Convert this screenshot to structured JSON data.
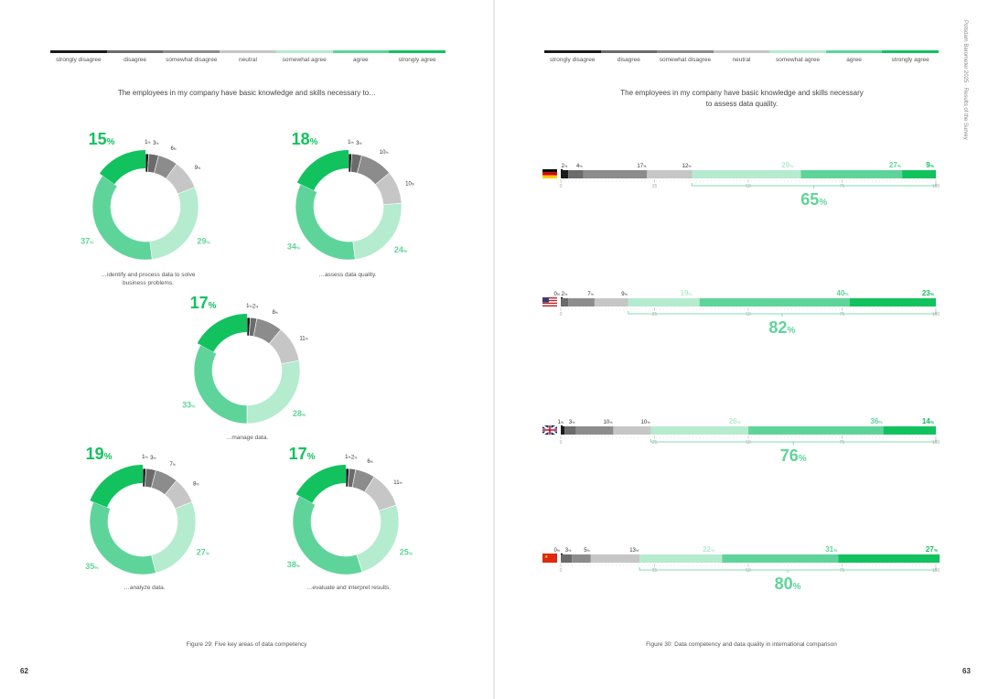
{
  "legend": [
    "strongly disagree",
    "disagree",
    "somewhat disagree",
    "neutral",
    "somewhat agree",
    "agree",
    "strongly agree"
  ],
  "colors": [
    "#1a1a1a",
    "#6b6b6b",
    "#8c8c8c",
    "#c6c6c6",
    "#b5ebcf",
    "#5fd49a",
    "#12c25e"
  ],
  "left_page": {
    "question": "The employees in my company have basic knowledge and skills necessary to…",
    "figure_caption": "Figure 29: Five key areas of data competency",
    "page_number": "62"
  },
  "right_page": {
    "question_line1": "The employees in my company have basic knowledge and skills necessary",
    "question_line2": "to assess data quality.",
    "figure_caption": "Figure 30: Data competency and data quality in international comparison",
    "page_number": "63",
    "side_text": "Potsdam Barometer 2025 · Results of the Survey"
  },
  "chart_data": [
    {
      "type": "pie",
      "title": "The employees in my company have basic knowledge and skills necessary to…",
      "categories": [
        "strongly disagree",
        "disagree",
        "somewhat disagree",
        "neutral",
        "somewhat agree",
        "agree",
        "strongly agree"
      ],
      "donuts": [
        {
          "caption_line1": "…identify and process data to solve",
          "caption_line2": "business problems.",
          "values": [
            1,
            3,
            6,
            9,
            29,
            37,
            15
          ]
        },
        {
          "caption_line1": "…assess data quality.",
          "caption_line2": "",
          "values": [
            1,
            3,
            10,
            10,
            24,
            34,
            18
          ]
        },
        {
          "caption_line1": "…manage data.",
          "caption_line2": "",
          "values": [
            1,
            2,
            8,
            11,
            28,
            33,
            17
          ]
        },
        {
          "caption_line1": "…analyze data.",
          "caption_line2": "",
          "values": [
            1,
            3,
            7,
            8,
            27,
            35,
            19
          ]
        },
        {
          "caption_line1": "…evaluate and interpret results.",
          "caption_line2": "",
          "values": [
            1,
            2,
            6,
            11,
            25,
            38,
            17
          ]
        }
      ]
    },
    {
      "type": "bar",
      "title": "The employees in my company have basic knowledge and skills necessary to assess data quality.",
      "categories": [
        "strongly disagree",
        "disagree",
        "somewhat disagree",
        "neutral",
        "somewhat agree",
        "agree",
        "strongly agree"
      ],
      "axis_ticks": [
        "0",
        "25",
        "50",
        "75",
        "100"
      ],
      "xlim": [
        0,
        100
      ],
      "series": [
        {
          "name": "Germany",
          "flag": "de",
          "values": [
            2,
            4,
            17,
            12,
            29,
            27,
            9
          ],
          "agree_total": "65"
        },
        {
          "name": "USA",
          "flag": "us",
          "values": [
            0,
            2,
            7,
            9,
            19,
            40,
            23
          ],
          "agree_total": "82"
        },
        {
          "name": "United Kingdom",
          "flag": "gb",
          "values": [
            1,
            3,
            10,
            10,
            26,
            36,
            14
          ],
          "agree_total": "76"
        },
        {
          "name": "China",
          "flag": "cn",
          "values": [
            0,
            3,
            5,
            13,
            22,
            31,
            27
          ],
          "agree_total": "80"
        }
      ]
    }
  ]
}
